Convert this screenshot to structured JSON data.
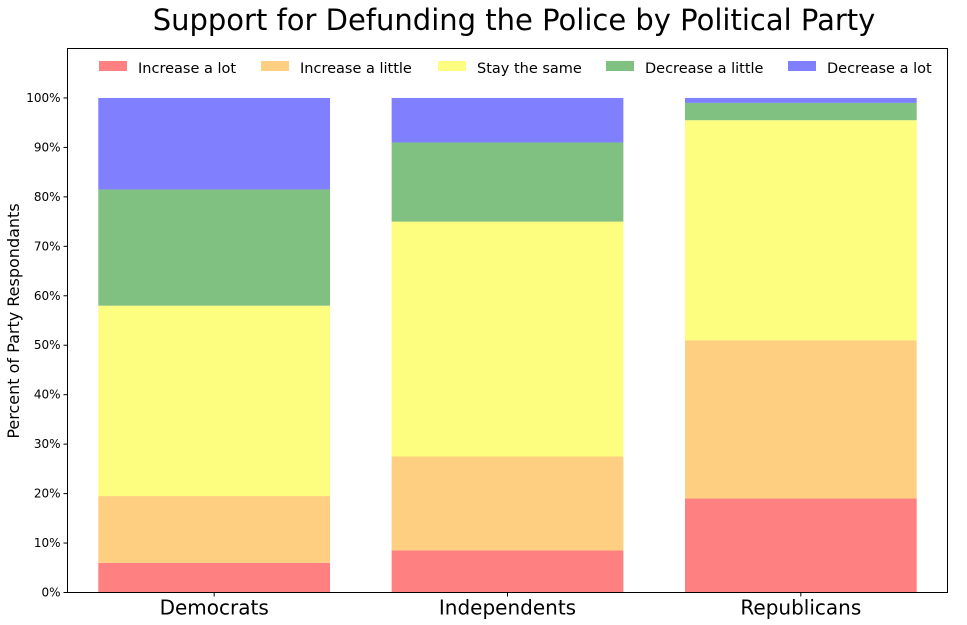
{
  "chart_data": {
    "type": "bar",
    "stacked": true,
    "title": "Support for Defunding the Police by Political Party",
    "xlabel": "",
    "ylabel": "Percent of Party Respondants",
    "ylim": [
      0,
      110
    ],
    "yticks": [
      0,
      10,
      20,
      30,
      40,
      50,
      60,
      70,
      80,
      90,
      100
    ],
    "ytick_labels": [
      "0%",
      "10%",
      "20%",
      "30%",
      "40%",
      "50%",
      "60%",
      "70%",
      "80%",
      "90%",
      "100%"
    ],
    "categories": [
      "Democrats",
      "Independents",
      "Republicans"
    ],
    "grid": false,
    "legend_position": "top",
    "series": [
      {
        "name": "Increase a lot",
        "color": "#ff8080",
        "values": [
          6,
          8.5,
          19
        ]
      },
      {
        "name": "Increase a little",
        "color": "#fecf80",
        "values": [
          13.5,
          19,
          32
        ]
      },
      {
        "name": "Stay the same",
        "color": "#fdfd80",
        "values": [
          38.5,
          47.5,
          44.5
        ]
      },
      {
        "name": "Decrease a little",
        "color": "#80c080",
        "values": [
          23.5,
          16,
          3.5
        ]
      },
      {
        "name": "Decrease a lot",
        "color": "#8080ff",
        "values": [
          18.5,
          9,
          1
        ]
      }
    ]
  }
}
